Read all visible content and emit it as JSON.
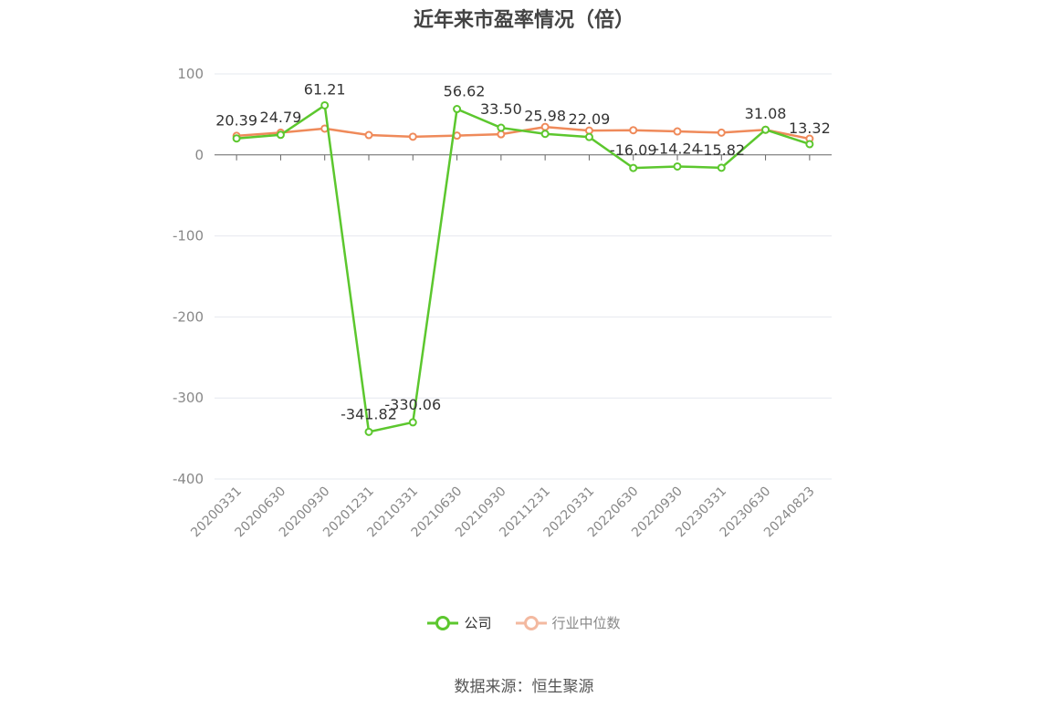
{
  "title": "近年来市盈率情况（倍）",
  "source": "数据来源：恒生聚源",
  "colors": {
    "company": "#5cc72e",
    "industry": "#ef8a5a",
    "axis": "#666666",
    "grid": "#e6e8ef",
    "tick": "#888888"
  },
  "chart_data": {
    "type": "line",
    "title": "近年来市盈率情况（倍）",
    "categories": [
      "20200331",
      "20200630",
      "20200930",
      "20201231",
      "20210331",
      "20210630",
      "20210930",
      "20211231",
      "20220331",
      "20220630",
      "20220930",
      "20230331",
      "20230630",
      "20240823"
    ],
    "ylim": [
      -400,
      100
    ],
    "yticks": [
      100,
      0,
      -100,
      -200,
      -300,
      -400
    ],
    "grid": true,
    "legend_position": "bottom",
    "series": [
      {
        "name": "公司",
        "values": [
          20.39,
          24.79,
          61.21,
          -341.82,
          -330.06,
          56.62,
          33.5,
          25.98,
          22.09,
          -16.09,
          -14.24,
          -15.82,
          31.08,
          13.32
        ],
        "labels": [
          "20.39",
          "24.79",
          "61.21",
          "-341.82",
          "-330.06",
          "56.62",
          "33.50",
          "25.98",
          "22.09",
          "-16.09",
          "-14.24",
          "-15.82",
          "31.08",
          "13.32"
        ]
      },
      {
        "name": "行业中位数",
        "values": [
          23.5,
          27.5,
          32.5,
          24.5,
          22.5,
          23.8,
          25.5,
          34.5,
          30.0,
          30.5,
          29.0,
          27.5,
          31.0,
          20.0
        ]
      }
    ]
  },
  "legend": {
    "company": "公司",
    "industry": "行业中位数"
  }
}
